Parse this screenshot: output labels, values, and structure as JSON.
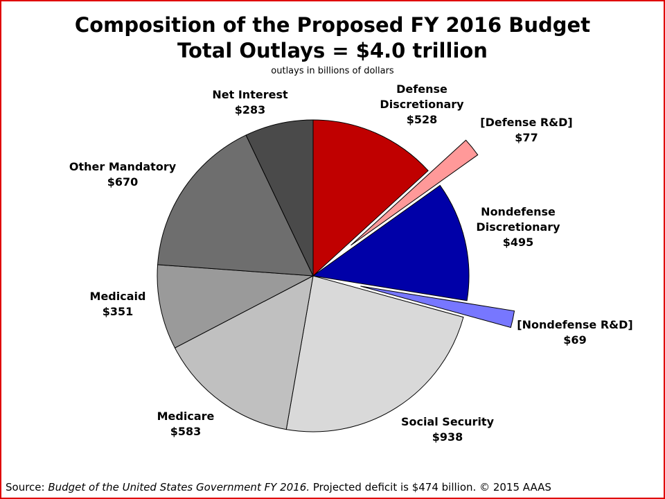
{
  "chart_data": {
    "type": "pie",
    "title_line1": "Composition of the Proposed FY 2016 Budget",
    "title_line2": "Total Outlays = $4.0 trillion",
    "subtitle": "outlays in billions of dollars",
    "slices": [
      {
        "name": "Defense Discretionary",
        "label_lines": [
          "Defense",
          "Discretionary"
        ],
        "value_label": "$528",
        "value": 528,
        "color": "#c00000",
        "exploded": false
      },
      {
        "name": "[Defense R&D]",
        "label_lines": [
          "[Defense R&D]"
        ],
        "value_label": "$77",
        "value": 77,
        "color": "#ff9999",
        "exploded": true
      },
      {
        "name": "Nondefense Discretionary",
        "label_lines": [
          "Nondefense",
          "Discretionary"
        ],
        "value_label": "$495",
        "value": 495,
        "color": "#0000a8",
        "exploded": false
      },
      {
        "name": "[Nondefense R&D]",
        "label_lines": [
          "[Nondefense R&D]"
        ],
        "value_label": "$69",
        "value": 69,
        "color": "#7777ff",
        "exploded": true
      },
      {
        "name": "Social Security",
        "label_lines": [
          "Social Security"
        ],
        "value_label": "$938",
        "value": 938,
        "color": "#d9d9d9",
        "exploded": false
      },
      {
        "name": "Medicare",
        "label_lines": [
          "Medicare"
        ],
        "value_label": "$583",
        "value": 583,
        "color": "#c0c0c0",
        "exploded": false
      },
      {
        "name": "Medicaid",
        "label_lines": [
          "Medicaid"
        ],
        "value_label": "$351",
        "value": 351,
        "color": "#9a9a9a",
        "exploded": false
      },
      {
        "name": "Other Mandatory",
        "label_lines": [
          "Other Mandatory"
        ],
        "value_label": "$670",
        "value": 670,
        "color": "#6e6e6e",
        "exploded": false
      },
      {
        "name": "Net Interest",
        "label_lines": [
          "Net Interest"
        ],
        "value_label": "$283",
        "value": 283,
        "color": "#4a4a4a",
        "exploded": false
      }
    ]
  },
  "source": {
    "prefix": "Source: ",
    "publication": "Budget of the United States Government FY 2016.",
    "suffix": " Projected deficit is $474 billion. © 2015 AAAS"
  }
}
